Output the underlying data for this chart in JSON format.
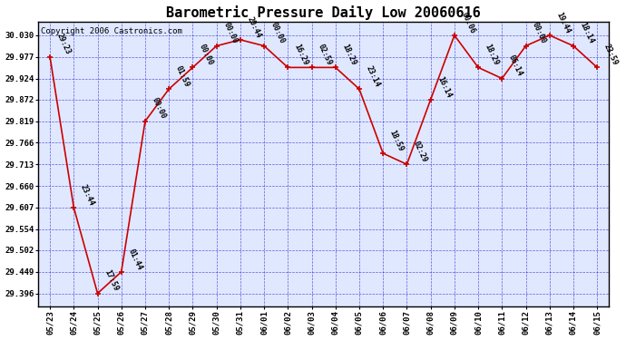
{
  "title": "Barometric Pressure Daily Low 20060616",
  "copyright": "Copyright 2006 Castronics.com",
  "dates": [
    "05/23",
    "05/24",
    "05/25",
    "05/26",
    "05/27",
    "05/28",
    "05/29",
    "05/30",
    "05/31",
    "06/01",
    "06/02",
    "06/03",
    "06/04",
    "06/05",
    "06/06",
    "06/07",
    "06/08",
    "06/09",
    "06/10",
    "06/11",
    "06/12",
    "06/13",
    "06/14",
    "06/15"
  ],
  "values": [
    29.977,
    29.607,
    29.396,
    29.449,
    29.819,
    29.898,
    29.951,
    30.004,
    30.019,
    30.004,
    29.951,
    29.951,
    29.951,
    29.898,
    29.74,
    29.713,
    29.872,
    30.03,
    29.951,
    29.924,
    30.004,
    30.03,
    30.004,
    29.951
  ],
  "annotations": [
    "29:23",
    "23:44",
    "17:59",
    "01:44",
    "00:00",
    "01:59",
    "00:00",
    "00:00",
    "20:44",
    "00:00",
    "16:29",
    "02:59",
    "18:29",
    "23:14",
    "18:59",
    "02:29",
    "16:14",
    "00:06",
    "18:29",
    "06:14",
    "00:00",
    "19:44",
    "18:14",
    "23:59"
  ],
  "line_color": "#cc0000",
  "bg_color": "#ffffff",
  "grid_color": "#0000cc",
  "plot_bg_color": "#e0e8ff",
  "ytick_values": [
    29.396,
    29.449,
    29.502,
    29.554,
    29.607,
    29.66,
    29.713,
    29.766,
    29.819,
    29.872,
    29.924,
    29.977,
    30.03
  ],
  "ylim_min": 29.363,
  "ylim_max": 30.063,
  "figwidth": 6.9,
  "figheight": 3.75,
  "dpi": 100
}
